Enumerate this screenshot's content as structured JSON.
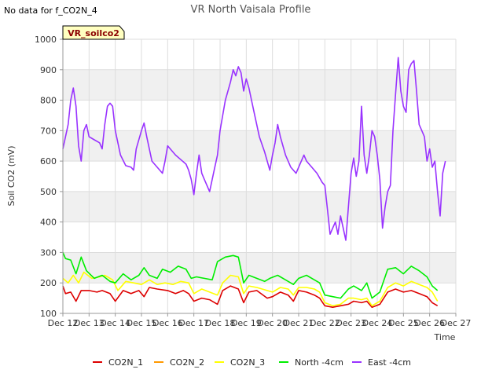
{
  "header": {
    "no_data_note": "No data for f_CO2N_4"
  },
  "chart_data": {
    "type": "line",
    "title": "VR North Vaisala Profile",
    "badge": "VR_soilco2",
    "xlabel": "Time",
    "ylabel": "Soil CO2 (mV)",
    "xlim": [
      12,
      27
    ],
    "ylim": [
      100,
      1000
    ],
    "x_ticks": [
      {
        "v": 12,
        "label": "Dec 12"
      },
      {
        "v": 13,
        "label": "Dec 13"
      },
      {
        "v": 14,
        "label": "Dec 14"
      },
      {
        "v": 15,
        "label": "Dec 15"
      },
      {
        "v": 16,
        "label": "Dec 16"
      },
      {
        "v": 17,
        "label": "Dec 17"
      },
      {
        "v": 18,
        "label": "Dec 18"
      },
      {
        "v": 19,
        "label": "Dec 19"
      },
      {
        "v": 20,
        "label": "Dec 20"
      },
      {
        "v": 21,
        "label": "Dec 21"
      },
      {
        "v": 22,
        "label": "Dec 22"
      },
      {
        "v": 23,
        "label": "Dec 23"
      },
      {
        "v": 24,
        "label": "Dec 24"
      },
      {
        "v": 25,
        "label": "Dec 25"
      },
      {
        "v": 26,
        "label": "Dec 26"
      },
      {
        "v": 27,
        "label": "Dec 27"
      }
    ],
    "y_ticks": [
      100,
      200,
      300,
      400,
      500,
      600,
      700,
      800,
      900,
      1000
    ],
    "grid": true,
    "legend_position": "bottom",
    "series": [
      {
        "name": "CO2N_1",
        "color": "#dd0000",
        "points": [
          [
            12.0,
            190
          ],
          [
            12.1,
            165
          ],
          [
            12.3,
            170
          ],
          [
            12.5,
            140
          ],
          [
            12.7,
            175
          ],
          [
            13.0,
            175
          ],
          [
            13.3,
            170
          ],
          [
            13.5,
            175
          ],
          [
            13.8,
            165
          ],
          [
            14.0,
            140
          ],
          [
            14.3,
            175
          ],
          [
            14.6,
            165
          ],
          [
            14.9,
            175
          ],
          [
            15.1,
            155
          ],
          [
            15.3,
            185
          ],
          [
            15.6,
            180
          ],
          [
            16.0,
            175
          ],
          [
            16.3,
            165
          ],
          [
            16.6,
            175
          ],
          [
            16.8,
            165
          ],
          [
            17.0,
            140
          ],
          [
            17.3,
            150
          ],
          [
            17.6,
            145
          ],
          [
            17.9,
            130
          ],
          [
            18.1,
            175
          ],
          [
            18.4,
            190
          ],
          [
            18.7,
            180
          ],
          [
            18.9,
            135
          ],
          [
            19.1,
            170
          ],
          [
            19.4,
            175
          ],
          [
            19.8,
            150
          ],
          [
            20.0,
            155
          ],
          [
            20.3,
            170
          ],
          [
            20.6,
            160
          ],
          [
            20.8,
            140
          ],
          [
            21.0,
            175
          ],
          [
            21.3,
            170
          ],
          [
            21.6,
            160
          ],
          [
            21.8,
            150
          ],
          [
            22.0,
            125
          ],
          [
            22.3,
            120
          ],
          [
            22.6,
            125
          ],
          [
            22.9,
            130
          ],
          [
            23.1,
            140
          ],
          [
            23.4,
            135
          ],
          [
            23.6,
            140
          ],
          [
            23.8,
            120
          ],
          [
            24.1,
            130
          ],
          [
            24.4,
            170
          ],
          [
            24.7,
            180
          ],
          [
            25.0,
            170
          ],
          [
            25.3,
            175
          ],
          [
            25.6,
            165
          ],
          [
            25.9,
            155
          ],
          [
            26.1,
            135
          ],
          [
            26.3,
            125
          ]
        ]
      },
      {
        "name": "CO2N_2",
        "color": "#ff9900",
        "points": []
      },
      {
        "name": "CO2N_3",
        "color": "#ffff00",
        "points": [
          [
            12.0,
            215
          ],
          [
            12.2,
            200
          ],
          [
            12.4,
            225
          ],
          [
            12.6,
            200
          ],
          [
            12.8,
            235
          ],
          [
            13.1,
            215
          ],
          [
            13.4,
            220
          ],
          [
            13.6,
            225
          ],
          [
            13.9,
            210
          ],
          [
            14.1,
            175
          ],
          [
            14.4,
            205
          ],
          [
            14.7,
            200
          ],
          [
            15.0,
            195
          ],
          [
            15.3,
            210
          ],
          [
            15.6,
            195
          ],
          [
            15.9,
            200
          ],
          [
            16.2,
            195
          ],
          [
            16.5,
            205
          ],
          [
            16.8,
            200
          ],
          [
            17.0,
            165
          ],
          [
            17.3,
            180
          ],
          [
            17.6,
            170
          ],
          [
            17.9,
            160
          ],
          [
            18.1,
            200
          ],
          [
            18.4,
            225
          ],
          [
            18.7,
            220
          ],
          [
            18.9,
            165
          ],
          [
            19.1,
            190
          ],
          [
            19.4,
            185
          ],
          [
            19.8,
            175
          ],
          [
            20.0,
            170
          ],
          [
            20.3,
            185
          ],
          [
            20.6,
            180
          ],
          [
            20.8,
            160
          ],
          [
            21.0,
            185
          ],
          [
            21.3,
            185
          ],
          [
            21.6,
            180
          ],
          [
            21.8,
            170
          ],
          [
            22.0,
            135
          ],
          [
            22.3,
            125
          ],
          [
            22.6,
            130
          ],
          [
            22.9,
            150
          ],
          [
            23.1,
            150
          ],
          [
            23.4,
            145
          ],
          [
            23.6,
            150
          ],
          [
            23.8,
            125
          ],
          [
            24.1,
            140
          ],
          [
            24.4,
            185
          ],
          [
            24.7,
            200
          ],
          [
            25.0,
            190
          ],
          [
            25.3,
            205
          ],
          [
            25.6,
            195
          ],
          [
            25.9,
            185
          ],
          [
            26.1,
            170
          ],
          [
            26.3,
            140
          ]
        ]
      },
      {
        "name": "North -4cm",
        "color": "#00ee00",
        "points": [
          [
            12.0,
            300
          ],
          [
            12.1,
            280
          ],
          [
            12.3,
            275
          ],
          [
            12.5,
            230
          ],
          [
            12.7,
            285
          ],
          [
            12.9,
            240
          ],
          [
            13.2,
            215
          ],
          [
            13.5,
            225
          ],
          [
            13.8,
            205
          ],
          [
            14.0,
            200
          ],
          [
            14.3,
            230
          ],
          [
            14.6,
            210
          ],
          [
            14.9,
            225
          ],
          [
            15.1,
            250
          ],
          [
            15.3,
            225
          ],
          [
            15.6,
            215
          ],
          [
            15.8,
            245
          ],
          [
            16.1,
            235
          ],
          [
            16.4,
            255
          ],
          [
            16.7,
            245
          ],
          [
            16.9,
            215
          ],
          [
            17.1,
            220
          ],
          [
            17.4,
            215
          ],
          [
            17.7,
            210
          ],
          [
            17.9,
            270
          ],
          [
            18.2,
            285
          ],
          [
            18.5,
            290
          ],
          [
            18.7,
            285
          ],
          [
            18.9,
            200
          ],
          [
            19.1,
            225
          ],
          [
            19.4,
            215
          ],
          [
            19.7,
            205
          ],
          [
            19.9,
            215
          ],
          [
            20.2,
            225
          ],
          [
            20.5,
            210
          ],
          [
            20.8,
            195
          ],
          [
            21.0,
            215
          ],
          [
            21.3,
            225
          ],
          [
            21.6,
            210
          ],
          [
            21.8,
            200
          ],
          [
            22.0,
            160
          ],
          [
            22.3,
            155
          ],
          [
            22.6,
            150
          ],
          [
            22.9,
            180
          ],
          [
            23.1,
            190
          ],
          [
            23.4,
            175
          ],
          [
            23.6,
            200
          ],
          [
            23.8,
            150
          ],
          [
            24.1,
            170
          ],
          [
            24.4,
            245
          ],
          [
            24.7,
            250
          ],
          [
            25.0,
            230
          ],
          [
            25.3,
            255
          ],
          [
            25.6,
            240
          ],
          [
            25.9,
            220
          ],
          [
            26.1,
            190
          ],
          [
            26.3,
            175
          ]
        ]
      },
      {
        "name": "East -4cm",
        "color": "#9933ff",
        "points": [
          [
            12.0,
            640
          ],
          [
            12.2,
            720
          ],
          [
            12.3,
            800
          ],
          [
            12.4,
            840
          ],
          [
            12.5,
            780
          ],
          [
            12.6,
            650
          ],
          [
            12.7,
            600
          ],
          [
            12.8,
            700
          ],
          [
            12.9,
            720
          ],
          [
            13.0,
            680
          ],
          [
            13.2,
            670
          ],
          [
            13.4,
            660
          ],
          [
            13.5,
            640
          ],
          [
            13.6,
            720
          ],
          [
            13.7,
            780
          ],
          [
            13.8,
            790
          ],
          [
            13.9,
            780
          ],
          [
            14.0,
            700
          ],
          [
            14.2,
            620
          ],
          [
            14.4,
            585
          ],
          [
            14.6,
            580
          ],
          [
            14.7,
            570
          ],
          [
            14.8,
            640
          ],
          [
            15.0,
            700
          ],
          [
            15.1,
            725
          ],
          [
            15.2,
            680
          ],
          [
            15.4,
            600
          ],
          [
            15.6,
            580
          ],
          [
            15.8,
            560
          ],
          [
            15.9,
            600
          ],
          [
            16.0,
            650
          ],
          [
            16.1,
            640
          ],
          [
            16.3,
            620
          ],
          [
            16.5,
            605
          ],
          [
            16.7,
            590
          ],
          [
            16.8,
            570
          ],
          [
            16.9,
            540
          ],
          [
            17.0,
            490
          ],
          [
            17.1,
            560
          ],
          [
            17.2,
            620
          ],
          [
            17.3,
            560
          ],
          [
            17.4,
            540
          ],
          [
            17.5,
            520
          ],
          [
            17.6,
            500
          ],
          [
            17.7,
            540
          ],
          [
            17.8,
            580
          ],
          [
            17.9,
            620
          ],
          [
            18.0,
            700
          ],
          [
            18.2,
            800
          ],
          [
            18.4,
            860
          ],
          [
            18.5,
            900
          ],
          [
            18.6,
            880
          ],
          [
            18.7,
            910
          ],
          [
            18.8,
            890
          ],
          [
            18.9,
            830
          ],
          [
            19.0,
            870
          ],
          [
            19.1,
            840
          ],
          [
            19.3,
            760
          ],
          [
            19.5,
            680
          ],
          [
            19.7,
            630
          ],
          [
            19.9,
            570
          ],
          [
            20.0,
            620
          ],
          [
            20.1,
            660
          ],
          [
            20.2,
            720
          ],
          [
            20.3,
            680
          ],
          [
            20.5,
            620
          ],
          [
            20.7,
            580
          ],
          [
            20.9,
            560
          ],
          [
            21.0,
            580
          ],
          [
            21.2,
            620
          ],
          [
            21.3,
            600
          ],
          [
            21.5,
            580
          ],
          [
            21.7,
            560
          ],
          [
            21.9,
            530
          ],
          [
            22.0,
            520
          ],
          [
            22.1,
            440
          ],
          [
            22.2,
            360
          ],
          [
            22.3,
            380
          ],
          [
            22.4,
            400
          ],
          [
            22.5,
            360
          ],
          [
            22.6,
            420
          ],
          [
            22.7,
            380
          ],
          [
            22.8,
            340
          ],
          [
            22.9,
            450
          ],
          [
            23.0,
            560
          ],
          [
            23.1,
            610
          ],
          [
            23.2,
            550
          ],
          [
            23.3,
            600
          ],
          [
            23.4,
            780
          ],
          [
            23.5,
            620
          ],
          [
            23.6,
            560
          ],
          [
            23.7,
            620
          ],
          [
            23.8,
            700
          ],
          [
            23.9,
            680
          ],
          [
            24.0,
            620
          ],
          [
            24.1,
            540
          ],
          [
            24.2,
            380
          ],
          [
            24.3,
            450
          ],
          [
            24.4,
            500
          ],
          [
            24.5,
            520
          ],
          [
            24.6,
            700
          ],
          [
            24.7,
            820
          ],
          [
            24.8,
            940
          ],
          [
            24.9,
            830
          ],
          [
            25.0,
            780
          ],
          [
            25.1,
            760
          ],
          [
            25.2,
            900
          ],
          [
            25.3,
            920
          ],
          [
            25.4,
            930
          ],
          [
            25.5,
            830
          ],
          [
            25.6,
            720
          ],
          [
            25.7,
            700
          ],
          [
            25.8,
            680
          ],
          [
            25.9,
            600
          ],
          [
            26.0,
            640
          ],
          [
            26.1,
            580
          ],
          [
            26.2,
            600
          ],
          [
            26.3,
            500
          ],
          [
            26.4,
            420
          ],
          [
            26.5,
            560
          ],
          [
            26.6,
            600
          ]
        ]
      }
    ]
  }
}
